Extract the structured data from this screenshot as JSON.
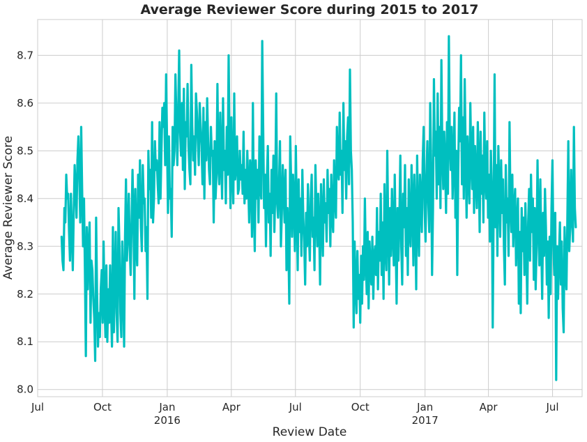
{
  "chart_data": {
    "type": "line",
    "title": "Average Reviewer Score during 2015 to 2017",
    "xlabel": "Review Date",
    "ylabel": "Average Reviewer Score",
    "ylim": [
      7.985,
      8.775
    ],
    "xlim": [
      "2015-07-01",
      "2017-08-12"
    ],
    "grid": true,
    "line_color": "#00bfbf",
    "x_ticks": [
      {
        "date": "2015-07-01",
        "label": "Jul",
        "sublabel": ""
      },
      {
        "date": "2015-10-01",
        "label": "Oct",
        "sublabel": ""
      },
      {
        "date": "2016-01-01",
        "label": "Jan",
        "sublabel": "2016"
      },
      {
        "date": "2016-04-01",
        "label": "Apr",
        "sublabel": ""
      },
      {
        "date": "2016-07-01",
        "label": "Jul",
        "sublabel": ""
      },
      {
        "date": "2016-10-01",
        "label": "Oct",
        "sublabel": ""
      },
      {
        "date": "2017-01-01",
        "label": "Jan",
        "sublabel": "2017"
      },
      {
        "date": "2017-04-01",
        "label": "Apr",
        "sublabel": ""
      },
      {
        "date": "2017-07-01",
        "label": "Jul",
        "sublabel": ""
      }
    ],
    "y_ticks": [
      8.0,
      8.1,
      8.2,
      8.3,
      8.4,
      8.5,
      8.6,
      8.7
    ],
    "y_tick_labels": [
      "8.0",
      "8.1",
      "8.2",
      "8.3",
      "8.4",
      "8.5",
      "8.6",
      "8.7"
    ],
    "series": [
      {
        "start_date": "2015-08-04",
        "end_date": "2017-08-03",
        "daily": true,
        "values": [
          8.32,
          8.27,
          8.25,
          8.38,
          8.35,
          8.45,
          8.4,
          8.41,
          8.33,
          8.27,
          8.41,
          8.33,
          8.25,
          8.37,
          8.47,
          8.42,
          8.36,
          8.48,
          8.53,
          8.45,
          8.35,
          8.55,
          8.42,
          8.3,
          8.4,
          8.25,
          8.07,
          8.34,
          8.21,
          8.3,
          8.35,
          8.14,
          8.27,
          8.25,
          8.19,
          8.15,
          8.06,
          8.36,
          8.2,
          8.09,
          8.16,
          8.11,
          8.21,
          8.25,
          8.14,
          8.31,
          8.18,
          8.11,
          8.26,
          8.1,
          8.21,
          8.14,
          8.26,
          8.17,
          8.09,
          8.34,
          8.12,
          8.22,
          8.33,
          8.16,
          8.1,
          8.38,
          8.3,
          8.16,
          8.11,
          8.31,
          8.22,
          8.09,
          8.32,
          8.44,
          8.27,
          8.33,
          8.41,
          8.3,
          8.24,
          8.35,
          8.46,
          8.36,
          8.19,
          8.42,
          8.31,
          8.26,
          8.45,
          8.36,
          8.48,
          8.34,
          8.29,
          8.47,
          8.39,
          8.4,
          8.29,
          8.34,
          8.19,
          8.5,
          8.42,
          8.46,
          8.36,
          8.56,
          8.35,
          8.4,
          8.52,
          8.46,
          8.48,
          8.43,
          8.39,
          8.56,
          8.4,
          8.5,
          8.59,
          8.55,
          8.6,
          8.47,
          8.66,
          8.52,
          8.37,
          8.53,
          8.4,
          8.42,
          8.32,
          8.55,
          8.47,
          8.5,
          8.66,
          8.57,
          8.47,
          8.58,
          8.71,
          8.54,
          8.49,
          8.6,
          8.46,
          8.63,
          8.42,
          8.56,
          8.53,
          8.64,
          8.51,
          8.46,
          8.43,
          8.68,
          8.55,
          8.48,
          8.53,
          8.45,
          8.62,
          8.58,
          8.52,
          8.47,
          8.6,
          8.55,
          8.51,
          8.43,
          8.59,
          8.4,
          8.56,
          8.48,
          8.61,
          8.52,
          8.46,
          8.43,
          8.55,
          8.49,
          8.5,
          8.35,
          8.52,
          8.4,
          8.45,
          8.64,
          8.47,
          8.43,
          8.58,
          8.49,
          8.4,
          8.61,
          8.46,
          8.5,
          8.39,
          8.55,
          8.45,
          8.7,
          8.5,
          8.38,
          8.57,
          8.45,
          8.39,
          8.62,
          8.44,
          8.47,
          8.53,
          8.41,
          8.42,
          8.5,
          8.44,
          8.47,
          8.41,
          8.54,
          8.39,
          8.46,
          8.4,
          8.5,
          8.43,
          8.35,
          8.48,
          8.45,
          8.32,
          8.6,
          8.38,
          8.29,
          8.48,
          8.4,
          8.46,
          8.35,
          8.53,
          8.42,
          8.4,
          8.73,
          8.55,
          8.38,
          8.45,
          8.3,
          8.44,
          8.51,
          8.35,
          8.41,
          8.28,
          8.46,
          8.37,
          8.49,
          8.33,
          8.42,
          8.62,
          8.39,
          8.36,
          8.43,
          8.52,
          8.3,
          8.37,
          8.47,
          8.41,
          8.35,
          8.46,
          8.25,
          8.38,
          8.31,
          8.18,
          8.53,
          8.43,
          8.32,
          8.45,
          8.39,
          8.29,
          8.51,
          8.37,
          8.25,
          8.44,
          8.33,
          8.4,
          8.28,
          8.46,
          8.36,
          8.31,
          8.22,
          8.37,
          8.3,
          8.43,
          8.33,
          8.27,
          8.4,
          8.45,
          8.32,
          8.36,
          8.25,
          8.47,
          8.38,
          8.3,
          8.41,
          8.34,
          8.22,
          8.43,
          8.36,
          8.28,
          8.44,
          8.35,
          8.39,
          8.31,
          8.46,
          8.37,
          8.42,
          8.3,
          8.45,
          8.36,
          8.33,
          8.48,
          8.4,
          8.36,
          8.55,
          8.47,
          8.44,
          8.58,
          8.45,
          8.5,
          8.37,
          8.6,
          8.46,
          8.52,
          8.4,
          8.53,
          8.57,
          8.43,
          8.67,
          8.5,
          8.46,
          8.35,
          8.13,
          8.31,
          8.22,
          8.16,
          8.29,
          8.19,
          8.24,
          8.14,
          8.28,
          8.18,
          8.3,
          8.23,
          8.4,
          8.27,
          8.2,
          8.33,
          8.17,
          8.31,
          8.25,
          8.22,
          8.32,
          8.19,
          8.28,
          8.3,
          8.24,
          8.38,
          8.21,
          8.33,
          8.27,
          8.41,
          8.24,
          8.35,
          8.19,
          8.43,
          8.3,
          8.25,
          8.5,
          8.34,
          8.22,
          8.38,
          8.28,
          8.42,
          8.33,
          8.26,
          8.45,
          8.31,
          8.18,
          8.38,
          8.27,
          8.36,
          8.49,
          8.3,
          8.22,
          8.41,
          8.34,
          8.47,
          8.28,
          8.38,
          8.24,
          8.44,
          8.33,
          8.3,
          8.47,
          8.39,
          8.26,
          8.45,
          8.36,
          8.21,
          8.49,
          8.35,
          8.28,
          8.45,
          8.4,
          8.33,
          8.48,
          8.55,
          8.38,
          8.31,
          8.45,
          8.52,
          8.39,
          8.33,
          8.6,
          8.47,
          8.24,
          8.38,
          8.65,
          8.49,
          8.54,
          8.4,
          8.62,
          8.43,
          8.55,
          8.38,
          8.69,
          8.5,
          8.42,
          8.54,
          8.47,
          8.37,
          8.56,
          8.41,
          8.74,
          8.52,
          8.46,
          8.55,
          8.4,
          8.48,
          8.58,
          8.36,
          8.5,
          8.24,
          8.45,
          8.59,
          8.52,
          8.7,
          8.43,
          8.57,
          8.4,
          8.65,
          8.49,
          8.36,
          8.53,
          8.45,
          8.39,
          8.6,
          8.48,
          8.42,
          8.55,
          8.37,
          8.51,
          8.44,
          8.38,
          8.56,
          8.47,
          8.33,
          8.54,
          8.41,
          8.49,
          8.35,
          8.58,
          8.44,
          8.4,
          8.52,
          8.36,
          8.45,
          8.31,
          8.5,
          8.42,
          8.13,
          8.38,
          8.66,
          8.34,
          8.47,
          8.28,
          8.51,
          8.42,
          8.32,
          8.48,
          8.37,
          8.44,
          8.3,
          8.22,
          8.47,
          8.35,
          8.4,
          8.28,
          8.56,
          8.39,
          8.33,
          8.45,
          8.3,
          8.38,
          8.42,
          8.26,
          8.35,
          8.4,
          8.18,
          8.33,
          8.16,
          8.38,
          8.29,
          8.36,
          8.24,
          8.39,
          8.3,
          8.18,
          8.35,
          8.42,
          8.27,
          8.45,
          8.33,
          8.4,
          8.23,
          8.38,
          8.21,
          8.3,
          8.48,
          8.34,
          8.26,
          8.44,
          8.31,
          8.19,
          8.37,
          8.28,
          8.42,
          8.34,
          8.22,
          8.31,
          8.15,
          8.32,
          8.2,
          8.38,
          8.48,
          8.3,
          8.24,
          8.37,
          8.02,
          8.3,
          8.19,
          8.28,
          8.35,
          8.22,
          8.31,
          8.17,
          8.12,
          8.34,
          8.26,
          8.21,
          8.36,
          8.52,
          8.29,
          8.34,
          8.46,
          8.36,
          8.31,
          8.55,
          8.38,
          8.34
        ]
      }
    ]
  }
}
